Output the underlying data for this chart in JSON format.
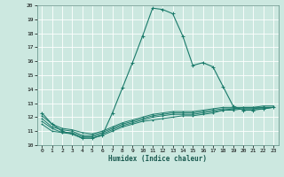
{
  "xlabel": "Humidex (Indice chaleur)",
  "bg_color": "#cce8e0",
  "grid_color": "#ffffff",
  "line_color": "#1a7a6a",
  "xlim": [
    -0.5,
    23.5
  ],
  "ylim": [
    10,
    20
  ],
  "yticks": [
    10,
    11,
    12,
    13,
    14,
    15,
    16,
    17,
    18,
    19,
    20
  ],
  "xticks": [
    0,
    1,
    2,
    3,
    4,
    5,
    6,
    7,
    8,
    9,
    10,
    11,
    12,
    13,
    14,
    15,
    16,
    17,
    18,
    19,
    20,
    21,
    22,
    23
  ],
  "main_x": [
    0,
    1,
    2,
    3,
    4,
    5,
    6,
    7,
    8,
    9,
    10,
    11,
    12,
    13,
    14,
    15,
    16,
    17,
    18,
    19,
    20,
    21,
    22,
    23
  ],
  "main_y": [
    12.3,
    11.5,
    11.0,
    10.8,
    10.5,
    10.5,
    10.7,
    12.3,
    14.1,
    15.9,
    17.8,
    19.8,
    19.7,
    19.4,
    17.8,
    15.7,
    15.9,
    15.6,
    14.2,
    12.8,
    12.5,
    12.5,
    12.6,
    12.7
  ],
  "flat_series": [
    [
      11.5,
      11.0,
      10.9,
      10.8,
      10.5,
      10.5,
      10.7,
      11.0,
      11.3,
      11.5,
      11.7,
      11.8,
      11.9,
      12.0,
      12.1,
      12.1,
      12.2,
      12.3,
      12.5,
      12.5,
      12.6,
      12.6,
      12.6,
      12.7
    ],
    [
      11.7,
      11.2,
      10.9,
      10.9,
      10.6,
      10.6,
      10.8,
      11.1,
      11.4,
      11.6,
      11.8,
      12.0,
      12.1,
      12.2,
      12.2,
      12.2,
      12.3,
      12.4,
      12.5,
      12.6,
      12.6,
      12.6,
      12.7,
      12.7
    ],
    [
      11.9,
      11.3,
      11.1,
      11.0,
      10.7,
      10.7,
      10.9,
      11.2,
      11.5,
      11.7,
      11.9,
      12.1,
      12.2,
      12.3,
      12.3,
      12.3,
      12.4,
      12.5,
      12.6,
      12.6,
      12.7,
      12.7,
      12.7,
      12.7
    ],
    [
      12.1,
      11.5,
      11.2,
      11.1,
      10.9,
      10.8,
      11.0,
      11.3,
      11.6,
      11.8,
      12.0,
      12.2,
      12.3,
      12.4,
      12.4,
      12.4,
      12.5,
      12.6,
      12.7,
      12.7,
      12.7,
      12.7,
      12.8,
      12.8
    ]
  ]
}
